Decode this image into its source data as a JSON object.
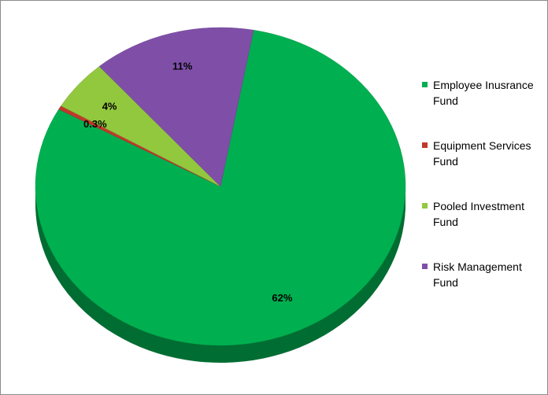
{
  "chart_data": {
    "type": "pie",
    "categories": [
      "Employee Inusrance Fund",
      "Equipment Services Fund",
      "Pooled Investment Fund",
      "Risk Management Fund"
    ],
    "values": [
      62,
      0.3,
      4,
      11
    ],
    "value_labels": [
      "62%",
      "0.3%",
      "4%",
      "11%"
    ],
    "colors": [
      "#00b050",
      "#c0392b",
      "#92c83e",
      "#7f4fa8"
    ],
    "legend": "right"
  }
}
